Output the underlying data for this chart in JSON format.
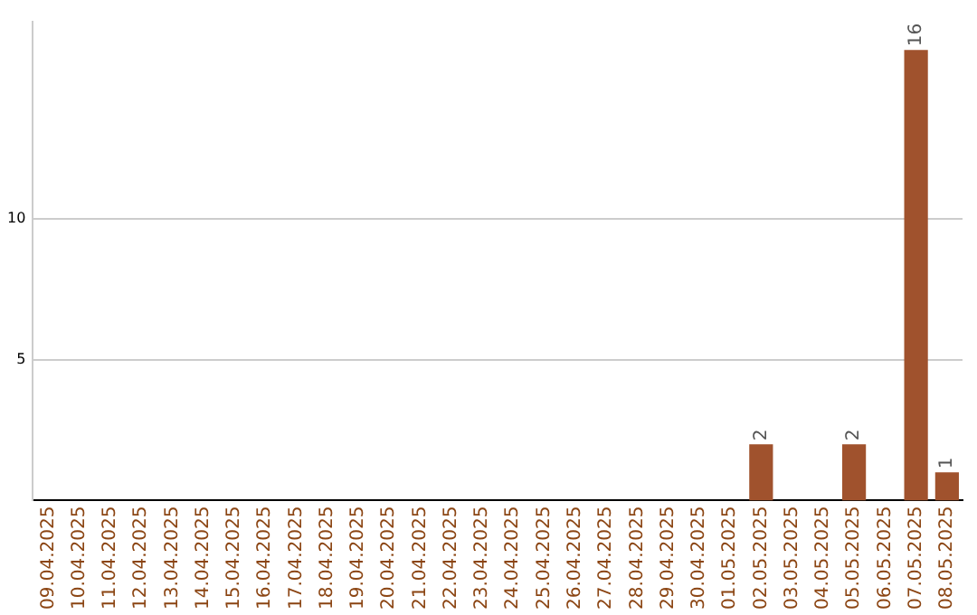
{
  "chart_data": {
    "type": "bar",
    "categories": [
      "09.04.2025",
      "10.04.2025",
      "11.04.2025",
      "12.04.2025",
      "13.04.2025",
      "14.04.2025",
      "15.04.2025",
      "16.04.2025",
      "17.04.2025",
      "18.04.2025",
      "19.04.2025",
      "20.04.2025",
      "21.04.2025",
      "22.04.2025",
      "23.04.2025",
      "24.04.2025",
      "25.04.2025",
      "26.04.2025",
      "27.04.2025",
      "28.04.2025",
      "29.04.2025",
      "30.04.2025",
      "01.05.2025",
      "02.05.2025",
      "03.05.2025",
      "04.05.2025",
      "05.05.2025",
      "06.05.2025",
      "07.05.2025",
      "08.05.2025"
    ],
    "values": [
      0,
      0,
      0,
      0,
      0,
      0,
      0,
      0,
      0,
      0,
      0,
      0,
      0,
      0,
      0,
      0,
      0,
      0,
      0,
      0,
      0,
      0,
      0,
      2,
      0,
      0,
      2,
      0,
      16,
      1
    ],
    "value_labels": [
      null,
      null,
      null,
      null,
      null,
      null,
      null,
      null,
      null,
      null,
      null,
      null,
      null,
      null,
      null,
      null,
      null,
      null,
      null,
      null,
      null,
      null,
      null,
      "2",
      null,
      null,
      "2",
      null,
      "16",
      "1"
    ],
    "color": "#a0522d",
    "ylim": [
      0,
      17
    ],
    "yticks": [
      5,
      10
    ],
    "grid": "y",
    "legend": false
  }
}
